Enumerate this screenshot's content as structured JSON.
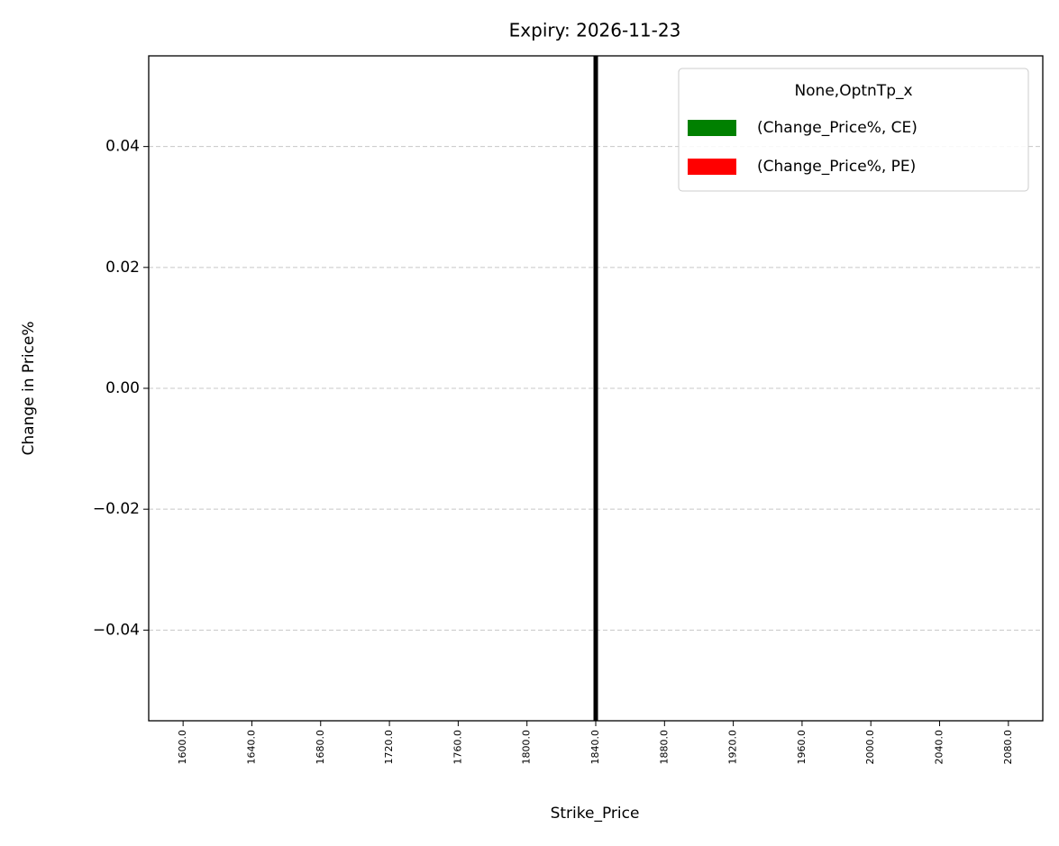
{
  "chart_data": {
    "type": "bar",
    "title": "Expiry: 2026-11-23",
    "x_label": "Strike_Price",
    "y_label": "Change in Price%",
    "categories": [
      "1600.0",
      "1640.0",
      "1680.0",
      "1720.0",
      "1760.0",
      "1800.0",
      "1840.0",
      "1880.0",
      "1920.0",
      "1960.0",
      "2000.0",
      "2040.0",
      "2080.0"
    ],
    "series": [
      {
        "name": "(Change_Price%, CE)",
        "color": "#008000",
        "values": [
          0,
          0,
          0,
          0,
          0,
          0,
          0,
          0,
          0,
          0,
          0,
          0,
          0
        ]
      },
      {
        "name": "(Change_Price%, PE)",
        "color": "#ff0000",
        "values": [
          0,
          0,
          0,
          0,
          0,
          0,
          0,
          0,
          0,
          0,
          0,
          0,
          0
        ]
      }
    ],
    "legend_title": "None,OptnTp_x",
    "legend": "upper right",
    "ylim": [
      -0.055,
      0.055
    ],
    "yticks": [
      {
        "value": -0.04,
        "label": "−0.04"
      },
      {
        "value": -0.02,
        "label": "−0.02"
      },
      {
        "value": 0,
        "label": "0.00"
      },
      {
        "value": 0.02,
        "label": "0.02"
      },
      {
        "value": 0.04,
        "label": "0.04"
      }
    ],
    "grid": true,
    "vline": 6,
    "vline_color": "#000000"
  }
}
